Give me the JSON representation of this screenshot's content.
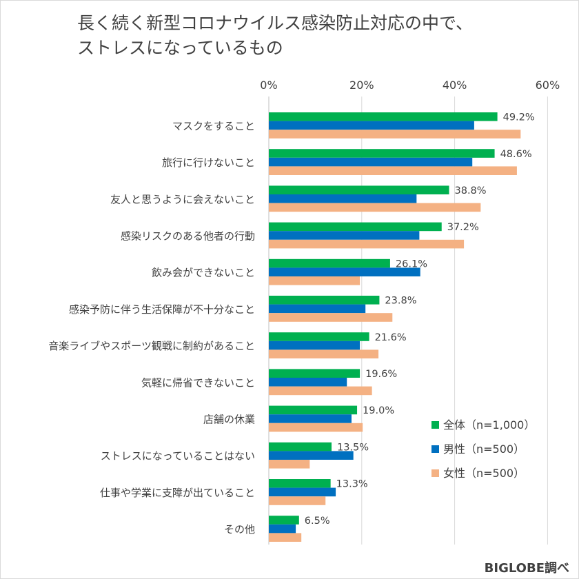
{
  "chart_data": {
    "type": "bar",
    "orientation": "horizontal",
    "title_lines": [
      "長く続く新型コロナウイルス感染防止対応の中で、",
      "ストレスになっているもの"
    ],
    "categories": [
      "マスクをすること",
      "旅行に行けないこと",
      "友人と思うように会えないこと",
      "感染リスクのある他者の行動",
      "飲み会ができないこと",
      "感染予防に伴う生活保障が不十分なこと",
      "音楽ライブやスポーツ観戦に制約があること",
      "気軽に帰省できないこと",
      "店舗の休業",
      "ストレスになっていることはない",
      "仕事や学業に支障が出ていること",
      "その他"
    ],
    "series": [
      {
        "name": "全体（n=1,000）",
        "color": "#00b050",
        "values": [
          49.2,
          48.6,
          38.8,
          37.2,
          26.1,
          23.8,
          21.6,
          19.6,
          19.0,
          13.5,
          13.3,
          6.5
        ]
      },
      {
        "name": "男性（n=500）",
        "color": "#0070c0",
        "values": [
          44.2,
          43.8,
          31.8,
          32.4,
          32.6,
          20.8,
          19.6,
          16.8,
          17.8,
          18.2,
          14.4,
          5.8
        ]
      },
      {
        "name": "女性（n=500）",
        "color": "#f4b183",
        "values": [
          54.2,
          53.4,
          45.6,
          42.0,
          19.6,
          26.6,
          23.6,
          22.2,
          20.2,
          8.8,
          12.2,
          7.0
        ]
      }
    ],
    "data_labels": [
      "49.2%",
      "48.6%",
      "38.8%",
      "37.2%",
      "26.1%",
      "23.8%",
      "21.6%",
      "19.6%",
      "19.0%",
      "13.5%",
      "13.3%",
      "6.5%"
    ],
    "x_ticks": [
      0,
      20,
      40,
      60
    ],
    "x_tick_labels": [
      "0%",
      "20%",
      "40%",
      "60%"
    ],
    "xlim": [
      0,
      60
    ],
    "axis_position": "top",
    "grid": true,
    "legend_position": "bottom-right"
  },
  "footer": "BIGLOBE調べ"
}
